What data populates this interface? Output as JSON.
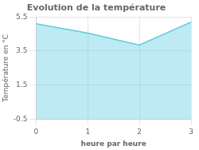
{
  "chart_data": {
    "type": "area",
    "title": "Evolution de la température",
    "x_label": "heure par heure",
    "y_label": "Température en °C",
    "x": [
      0,
      1,
      2,
      3
    ],
    "values": [
      5.1,
      4.55,
      3.85,
      5.2
    ],
    "color": "#5ccce0",
    "xlim": [
      0,
      3
    ],
    "xticks": [
      0,
      1,
      2,
      3
    ],
    "ylim": [
      -0.5,
      5.5
    ],
    "yticks": [
      -0.5,
      1.5,
      3.5,
      5.5
    ],
    "grid": true
  }
}
